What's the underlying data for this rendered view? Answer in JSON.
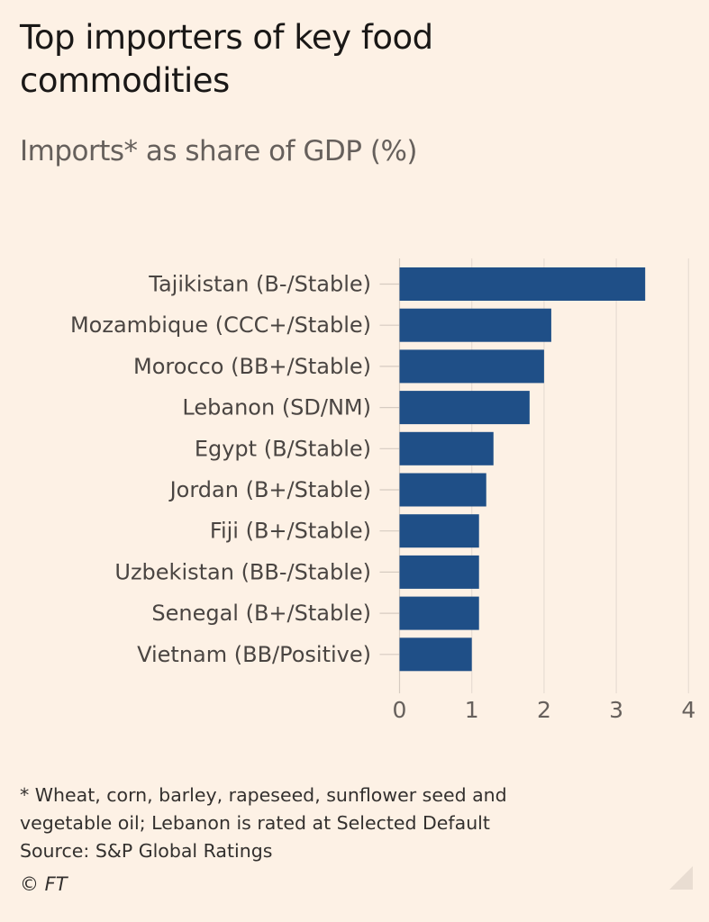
{
  "chart_data": {
    "type": "bar",
    "orientation": "horizontal",
    "title": "Top importers of key food commodities",
    "subtitle": "Imports* as share of GDP (%)",
    "categories": [
      "Tajikistan (B-/Stable)",
      "Mozambique (CCC+/Stable)",
      "Morocco (BB+/Stable)",
      "Lebanon (SD/NM)",
      "Egypt (B/Stable)",
      "Jordan (B+/Stable)",
      "Fiji (B+/Stable)",
      "Uzbekistan (BB-/Stable)",
      "Senegal (B+/Stable)",
      "Vietnam (BB/Positive)"
    ],
    "values": [
      3.4,
      2.1,
      2.0,
      1.8,
      1.3,
      1.2,
      1.1,
      1.1,
      1.1,
      1.0
    ],
    "xlim": [
      0,
      4
    ],
    "xticks": [
      "0",
      "1",
      "2",
      "3",
      "4"
    ],
    "xlabel": "",
    "ylabel": "",
    "grid": true,
    "bar_color": "#1f4f87"
  },
  "footnote": [
    "* Wheat, corn, barley, rapeseed, sunflower seed and",
    "vegetable oil; Lebanon is rated at Selected Default",
    "Source: S&P Global Ratings"
  ],
  "copyright": "© FT"
}
